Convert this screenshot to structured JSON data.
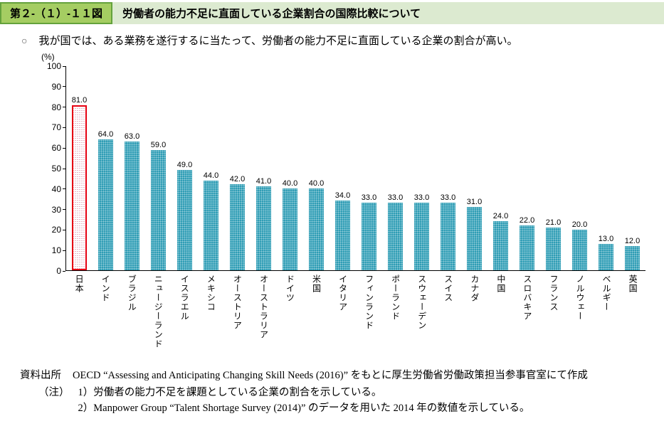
{
  "header": {
    "figure_label": "第２-（１）-１１図",
    "title": "労働者の能力不足に直面している企業割合の国際比較について"
  },
  "lead": {
    "bullet": "○",
    "text": "我が国では、ある業務を遂行するに当たって、労働者の能力不足に直面している企業の割合が高い。"
  },
  "chart_data": {
    "type": "bar",
    "unit_label": "(%)",
    "ylim": [
      0,
      100
    ],
    "yticks": [
      0,
      10,
      20,
      30,
      40,
      50,
      60,
      70,
      80,
      90,
      100
    ],
    "grid": false,
    "legend": null,
    "categories": [
      "日本",
      "インド",
      "ブラジル",
      "ニュージーランド",
      "イスラエル",
      "メキシコ",
      "オーストリア",
      "オーストラリア",
      "ドイツ",
      "米国",
      "イタリア",
      "フィンランド",
      "ポーランド",
      "スウェーデン",
      "スイス",
      "カナダ",
      "中国",
      "スロバキア",
      "フランス",
      "ノルウェー",
      "ベルギー",
      "英国"
    ],
    "values": [
      81.0,
      64.0,
      63.0,
      59.0,
      49.0,
      44.0,
      42.0,
      41.0,
      40.0,
      40.0,
      34.0,
      33.0,
      33.0,
      33.0,
      33.0,
      31.0,
      24.0,
      22.0,
      21.0,
      20.0,
      13.0,
      12.0
    ],
    "highlight_index": 0
  },
  "colors": {
    "header_box_bg": "#a5cd62",
    "header_box_border": "#64a23c",
    "header_strip_bg": "#dcead0",
    "bar_teal": "#2f9db5",
    "highlight_red": "#e60012",
    "hatch_pink": "#e39ab0"
  },
  "notes": {
    "source_label": "資料出所",
    "source_text": "OECD “Assessing and Anticipating Changing Skill Needs (2016)” をもとに厚生労働省労働政策担当参事官室にて作成",
    "note_label": "（注）",
    "items": [
      "1）労働者の能力不足を課題としている企業の割合を示している。",
      "2）Manpower Group “Talent Shortage Survey (2014)” のデータを用いた 2014 年の数値を示している。"
    ]
  }
}
